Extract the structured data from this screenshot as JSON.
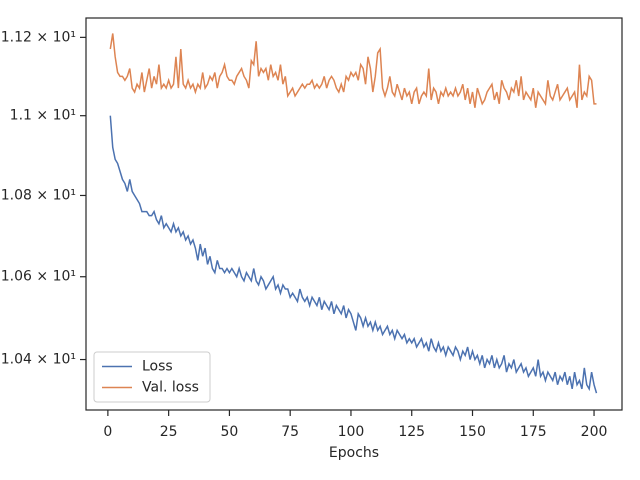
{
  "chart_data": {
    "type": "line",
    "xlabel": "Epochs",
    "yscale": "log",
    "legend": "lower left",
    "xlim": [
      -9,
      211.5
    ],
    "xticks": [
      0,
      25,
      50,
      75,
      100,
      125,
      150,
      175,
      200
    ],
    "ylim": [
      10.28,
      11.25
    ],
    "yticks": [
      {
        "value": 10.4,
        "label": "1.04 × 10¹"
      },
      {
        "value": 10.6,
        "label": "1.06 × 10¹"
      },
      {
        "value": 10.8,
        "label": "1.08 × 10¹"
      },
      {
        "value": 11.0,
        "label": "1.1 × 10¹"
      },
      {
        "value": 11.2,
        "label": "1.12 × 10¹"
      }
    ],
    "x": [
      1,
      2,
      3,
      4,
      5,
      6,
      7,
      8,
      9,
      10,
      11,
      12,
      13,
      14,
      15,
      16,
      17,
      18,
      19,
      20,
      21,
      22,
      23,
      24,
      25,
      26,
      27,
      28,
      29,
      30,
      31,
      32,
      33,
      34,
      35,
      36,
      37,
      38,
      39,
      40,
      41,
      42,
      43,
      44,
      45,
      46,
      47,
      48,
      49,
      50,
      51,
      52,
      53,
      54,
      55,
      56,
      57,
      58,
      59,
      60,
      61,
      62,
      63,
      64,
      65,
      66,
      67,
      68,
      69,
      70,
      71,
      72,
      73,
      74,
      75,
      76,
      77,
      78,
      79,
      80,
      81,
      82,
      83,
      84,
      85,
      86,
      87,
      88,
      89,
      90,
      91,
      92,
      93,
      94,
      95,
      96,
      97,
      98,
      99,
      100,
      101,
      102,
      103,
      104,
      105,
      106,
      107,
      108,
      109,
      110,
      111,
      112,
      113,
      114,
      115,
      116,
      117,
      118,
      119,
      120,
      121,
      122,
      123,
      124,
      125,
      126,
      127,
      128,
      129,
      130,
      131,
      132,
      133,
      134,
      135,
      136,
      137,
      138,
      139,
      140,
      141,
      142,
      143,
      144,
      145,
      146,
      147,
      148,
      149,
      150,
      151,
      152,
      153,
      154,
      155,
      156,
      157,
      158,
      159,
      160,
      161,
      162,
      163,
      164,
      165,
      166,
      167,
      168,
      169,
      170,
      171,
      172,
      173,
      174,
      175,
      176,
      177,
      178,
      179,
      180,
      181,
      182,
      183,
      184,
      185,
      186,
      187,
      188,
      189,
      190,
      191,
      192,
      193,
      194,
      195,
      196,
      197,
      198,
      199,
      200,
      201
    ],
    "series": [
      {
        "name": "Loss",
        "color": "#4c72b0",
        "values": [
          11.0,
          10.92,
          10.89,
          10.88,
          10.86,
          10.84,
          10.83,
          10.81,
          10.84,
          10.81,
          10.8,
          10.79,
          10.78,
          10.76,
          10.76,
          10.76,
          10.75,
          10.75,
          10.76,
          10.74,
          10.73,
          10.75,
          10.72,
          10.73,
          10.72,
          10.71,
          10.73,
          10.71,
          10.72,
          10.7,
          10.71,
          10.69,
          10.7,
          10.68,
          10.69,
          10.67,
          10.64,
          10.68,
          10.65,
          10.67,
          10.63,
          10.65,
          10.62,
          10.61,
          10.64,
          10.62,
          10.62,
          10.61,
          10.62,
          10.61,
          10.62,
          10.61,
          10.6,
          10.62,
          10.6,
          10.59,
          10.61,
          10.6,
          10.59,
          10.62,
          10.59,
          10.58,
          10.6,
          10.59,
          10.57,
          10.58,
          10.59,
          10.6,
          10.57,
          10.58,
          10.56,
          10.58,
          10.57,
          10.57,
          10.55,
          10.56,
          10.55,
          10.54,
          10.57,
          10.55,
          10.54,
          10.55,
          10.53,
          10.55,
          10.54,
          10.53,
          10.55,
          10.52,
          10.54,
          10.53,
          10.52,
          10.54,
          10.51,
          10.53,
          10.52,
          10.51,
          10.53,
          10.5,
          10.52,
          10.51,
          10.49,
          10.47,
          10.51,
          10.5,
          10.48,
          10.5,
          10.48,
          10.49,
          10.47,
          10.49,
          10.47,
          10.48,
          10.46,
          10.47,
          10.48,
          10.46,
          10.47,
          10.45,
          10.47,
          10.46,
          10.45,
          10.46,
          10.44,
          10.45,
          10.44,
          10.45,
          10.43,
          10.44,
          10.45,
          10.43,
          10.44,
          10.42,
          10.45,
          10.43,
          10.42,
          10.44,
          10.42,
          10.43,
          10.41,
          10.43,
          10.42,
          10.41,
          10.43,
          10.42,
          10.4,
          10.42,
          10.41,
          10.43,
          10.4,
          10.42,
          10.4,
          10.41,
          10.39,
          10.41,
          10.38,
          10.4,
          10.39,
          10.41,
          10.38,
          10.4,
          10.38,
          10.39,
          10.41,
          10.37,
          10.39,
          10.38,
          10.4,
          10.37,
          10.38,
          10.39,
          10.37,
          10.38,
          10.36,
          10.37,
          10.38,
          10.36,
          10.4,
          10.36,
          10.37,
          10.35,
          10.37,
          10.36,
          10.35,
          10.37,
          10.34,
          10.36,
          10.35,
          10.37,
          10.34,
          10.36,
          10.33,
          10.37,
          10.34,
          10.35,
          10.33,
          10.38,
          10.34,
          10.33,
          10.37,
          10.34,
          10.32
        ]
      },
      {
        "name": "Val. loss",
        "color": "#dd8452",
        "values": [
          11.17,
          11.21,
          11.15,
          11.11,
          11.1,
          11.1,
          11.09,
          11.1,
          11.12,
          11.07,
          11.06,
          11.08,
          11.07,
          11.11,
          11.06,
          11.09,
          11.12,
          11.07,
          11.1,
          11.08,
          11.13,
          11.07,
          11.08,
          11.07,
          11.09,
          11.07,
          11.08,
          11.15,
          11.07,
          11.17,
          11.08,
          11.07,
          11.09,
          11.07,
          11.08,
          11.06,
          11.08,
          11.07,
          11.11,
          11.07,
          11.08,
          11.1,
          11.09,
          11.11,
          11.07,
          11.1,
          11.11,
          11.13,
          11.1,
          11.09,
          11.09,
          11.08,
          11.1,
          11.11,
          11.12,
          11.1,
          11.09,
          11.07,
          11.14,
          11.13,
          11.19,
          11.1,
          11.12,
          11.11,
          11.12,
          11.09,
          11.13,
          11.1,
          11.11,
          11.09,
          11.13,
          11.08,
          11.1,
          11.05,
          11.06,
          11.07,
          11.05,
          11.06,
          11.07,
          11.08,
          11.07,
          11.08,
          11.08,
          11.09,
          11.07,
          11.08,
          11.07,
          11.08,
          11.1,
          11.07,
          11.09,
          11.1,
          11.09,
          11.07,
          11.06,
          11.08,
          11.06,
          11.1,
          11.09,
          11.11,
          11.1,
          11.11,
          11.09,
          11.13,
          11.12,
          11.08,
          11.15,
          11.12,
          11.06,
          11.1,
          11.16,
          11.17,
          11.07,
          11.05,
          11.07,
          11.1,
          11.06,
          11.05,
          11.08,
          11.06,
          11.04,
          11.07,
          11.05,
          11.06,
          11.03,
          11.06,
          11.07,
          11.03,
          11.05,
          11.06,
          11.05,
          11.12,
          11.04,
          11.07,
          11.06,
          11.03,
          11.06,
          11.05,
          11.07,
          11.05,
          11.06,
          11.05,
          11.07,
          11.05,
          11.06,
          11.08,
          11.04,
          11.07,
          11.03,
          11.06,
          11.02,
          11.07,
          11.05,
          11.03,
          11.04,
          11.06,
          11.07,
          11.08,
          11.04,
          11.06,
          11.03,
          11.09,
          11.07,
          11.06,
          11.04,
          11.07,
          11.06,
          11.09,
          11.05,
          11.1,
          11.04,
          11.06,
          11.05,
          11.04,
          11.07,
          11.02,
          11.06,
          11.05,
          11.04,
          11.03,
          11.09,
          11.05,
          11.04,
          11.06,
          11.08,
          11.04,
          11.05,
          11.06,
          11.07,
          11.04,
          11.05,
          11.06,
          11.02,
          11.13,
          11.04,
          11.06,
          11.05,
          11.1,
          11.09,
          11.03,
          11.03
        ]
      }
    ]
  }
}
